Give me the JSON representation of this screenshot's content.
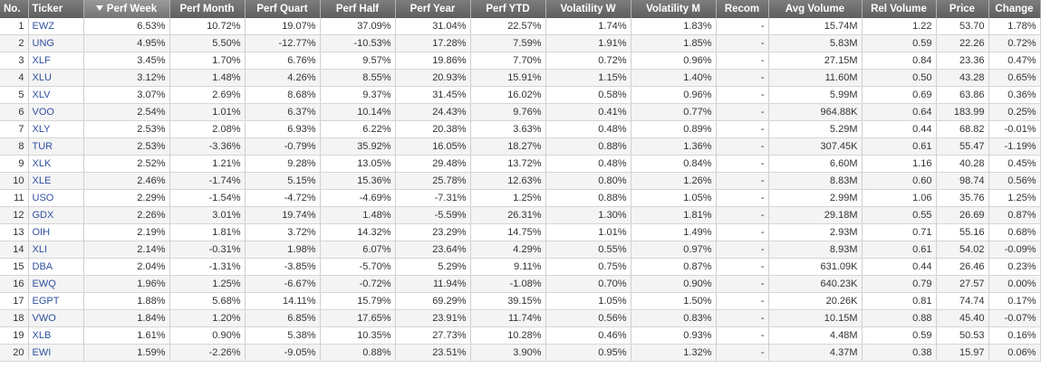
{
  "columns": [
    {
      "key": "no",
      "label": "No."
    },
    {
      "key": "ticker",
      "label": "Ticker"
    },
    {
      "key": "perf_week",
      "label": "Perf Week",
      "sorted": "desc"
    },
    {
      "key": "perf_month",
      "label": "Perf Month"
    },
    {
      "key": "perf_quart",
      "label": "Perf Quart"
    },
    {
      "key": "perf_half",
      "label": "Perf Half"
    },
    {
      "key": "perf_year",
      "label": "Perf Year"
    },
    {
      "key": "perf_ytd",
      "label": "Perf YTD"
    },
    {
      "key": "vol_w",
      "label": "Volatility W"
    },
    {
      "key": "vol_m",
      "label": "Volatility M"
    },
    {
      "key": "recom",
      "label": "Recom"
    },
    {
      "key": "avg_volume",
      "label": "Avg Volume"
    },
    {
      "key": "rel_volume",
      "label": "Rel Volume"
    },
    {
      "key": "price",
      "label": "Price"
    },
    {
      "key": "change",
      "label": "Change"
    }
  ],
  "colors": {
    "positive": "#117a11",
    "negative": "#c00000",
    "neutral": "#333333",
    "link": "#3050a0"
  },
  "rows": [
    {
      "no": "1",
      "ticker": "EWZ",
      "perf_week": "6.53%",
      "perf_month": "10.72%",
      "perf_quart": "19.07%",
      "perf_half": "37.09%",
      "perf_year": "31.04%",
      "perf_ytd": "22.57%",
      "vol_w": "1.74%",
      "vol_m": "1.83%",
      "recom": "-",
      "avg_volume": "15.74M",
      "rel_volume": "1.22",
      "price": "53.70",
      "change": "1.78%"
    },
    {
      "no": "2",
      "ticker": "UNG",
      "perf_week": "4.95%",
      "perf_month": "5.50%",
      "perf_quart": "-12.77%",
      "perf_half": "-10.53%",
      "perf_year": "17.28%",
      "perf_ytd": "7.59%",
      "vol_w": "1.91%",
      "vol_m": "1.85%",
      "recom": "-",
      "avg_volume": "5.83M",
      "rel_volume": "0.59",
      "price": "22.26",
      "change": "0.72%"
    },
    {
      "no": "3",
      "ticker": "XLF",
      "perf_week": "3.45%",
      "perf_month": "1.70%",
      "perf_quart": "6.76%",
      "perf_half": "9.57%",
      "perf_year": "19.86%",
      "perf_ytd": "7.70%",
      "vol_w": "0.72%",
      "vol_m": "0.96%",
      "recom": "-",
      "avg_volume": "27.15M",
      "rel_volume": "0.84",
      "price": "23.36",
      "change": "0.47%"
    },
    {
      "no": "4",
      "ticker": "XLU",
      "perf_week": "3.12%",
      "perf_month": "1.48%",
      "perf_quart": "4.26%",
      "perf_half": "8.55%",
      "perf_year": "20.93%",
      "perf_ytd": "15.91%",
      "vol_w": "1.15%",
      "vol_m": "1.40%",
      "recom": "-",
      "avg_volume": "11.60M",
      "rel_volume": "0.50",
      "price": "43.28",
      "change": "0.65%"
    },
    {
      "no": "5",
      "ticker": "XLV",
      "perf_week": "3.07%",
      "perf_month": "2.69%",
      "perf_quart": "8.68%",
      "perf_half": "9.37%",
      "perf_year": "31.45%",
      "perf_ytd": "16.02%",
      "vol_w": "0.58%",
      "vol_m": "0.96%",
      "recom": "-",
      "avg_volume": "5.99M",
      "rel_volume": "0.69",
      "price": "63.86",
      "change": "0.36%"
    },
    {
      "no": "6",
      "ticker": "VOO",
      "perf_week": "2.54%",
      "perf_month": "1.01%",
      "perf_quart": "6.37%",
      "perf_half": "10.14%",
      "perf_year": "24.43%",
      "perf_ytd": "9.76%",
      "vol_w": "0.41%",
      "vol_m": "0.77%",
      "recom": "-",
      "avg_volume": "964.88K",
      "rel_volume": "0.64",
      "price": "183.99",
      "change": "0.25%"
    },
    {
      "no": "7",
      "ticker": "XLY",
      "perf_week": "2.53%",
      "perf_month": "2.08%",
      "perf_quart": "6.93%",
      "perf_half": "6.22%",
      "perf_year": "20.38%",
      "perf_ytd": "3.63%",
      "vol_w": "0.48%",
      "vol_m": "0.89%",
      "recom": "-",
      "avg_volume": "5.29M",
      "rel_volume": "0.44",
      "price": "68.82",
      "change": "-0.01%"
    },
    {
      "no": "8",
      "ticker": "TUR",
      "perf_week": "2.53%",
      "perf_month": "-3.36%",
      "perf_quart": "-0.79%",
      "perf_half": "35.92%",
      "perf_year": "16.05%",
      "perf_ytd": "18.27%",
      "vol_w": "0.88%",
      "vol_m": "1.36%",
      "recom": "-",
      "avg_volume": "307.45K",
      "rel_volume": "0.61",
      "price": "55.47",
      "change": "-1.19%"
    },
    {
      "no": "9",
      "ticker": "XLK",
      "perf_week": "2.52%",
      "perf_month": "1.21%",
      "perf_quart": "9.28%",
      "perf_half": "13.05%",
      "perf_year": "29.48%",
      "perf_ytd": "13.72%",
      "vol_w": "0.48%",
      "vol_m": "0.84%",
      "recom": "-",
      "avg_volume": "6.60M",
      "rel_volume": "1.16",
      "price": "40.28",
      "change": "0.45%"
    },
    {
      "no": "10",
      "ticker": "XLE",
      "perf_week": "2.46%",
      "perf_month": "-1.74%",
      "perf_quart": "5.15%",
      "perf_half": "15.36%",
      "perf_year": "25.78%",
      "perf_ytd": "12.63%",
      "vol_w": "0.80%",
      "vol_m": "1.26%",
      "recom": "-",
      "avg_volume": "8.83M",
      "rel_volume": "0.60",
      "price": "98.74",
      "change": "0.56%"
    },
    {
      "no": "11",
      "ticker": "USO",
      "perf_week": "2.29%",
      "perf_month": "-1.54%",
      "perf_quart": "-4.72%",
      "perf_half": "-4.69%",
      "perf_year": "-7.31%",
      "perf_ytd": "1.25%",
      "vol_w": "0.88%",
      "vol_m": "1.05%",
      "recom": "-",
      "avg_volume": "2.99M",
      "rel_volume": "1.06",
      "price": "35.76",
      "change": "1.25%"
    },
    {
      "no": "12",
      "ticker": "GDX",
      "perf_week": "2.26%",
      "perf_month": "3.01%",
      "perf_quart": "19.74%",
      "perf_half": "1.48%",
      "perf_year": "-5.59%",
      "perf_ytd": "26.31%",
      "vol_w": "1.30%",
      "vol_m": "1.81%",
      "recom": "-",
      "avg_volume": "29.18M",
      "rel_volume": "0.55",
      "price": "26.69",
      "change": "0.87%"
    },
    {
      "no": "13",
      "ticker": "OIH",
      "perf_week": "2.19%",
      "perf_month": "1.81%",
      "perf_quart": "3.72%",
      "perf_half": "14.32%",
      "perf_year": "23.29%",
      "perf_ytd": "14.75%",
      "vol_w": "1.01%",
      "vol_m": "1.49%",
      "recom": "-",
      "avg_volume": "2.93M",
      "rel_volume": "0.71",
      "price": "55.16",
      "change": "0.68%"
    },
    {
      "no": "14",
      "ticker": "XLI",
      "perf_week": "2.14%",
      "perf_month": "-0.31%",
      "perf_quart": "1.98%",
      "perf_half": "6.07%",
      "perf_year": "23.64%",
      "perf_ytd": "4.29%",
      "vol_w": "0.55%",
      "vol_m": "0.97%",
      "recom": "-",
      "avg_volume": "8.93M",
      "rel_volume": "0.61",
      "price": "54.02",
      "change": "-0.09%"
    },
    {
      "no": "15",
      "ticker": "DBA",
      "perf_week": "2.04%",
      "perf_month": "-1.31%",
      "perf_quart": "-3.85%",
      "perf_half": "-5.70%",
      "perf_year": "5.29%",
      "perf_ytd": "9.11%",
      "vol_w": "0.75%",
      "vol_m": "0.87%",
      "recom": "-",
      "avg_volume": "631.09K",
      "rel_volume": "0.44",
      "price": "26.46",
      "change": "0.23%"
    },
    {
      "no": "16",
      "ticker": "EWQ",
      "perf_week": "1.96%",
      "perf_month": "1.25%",
      "perf_quart": "-6.67%",
      "perf_half": "-0.72%",
      "perf_year": "11.94%",
      "perf_ytd": "-1.08%",
      "vol_w": "0.70%",
      "vol_m": "0.90%",
      "recom": "-",
      "avg_volume": "640.23K",
      "rel_volume": "0.79",
      "price": "27.57",
      "change": "0.00%"
    },
    {
      "no": "17",
      "ticker": "EGPT",
      "perf_week": "1.88%",
      "perf_month": "5.68%",
      "perf_quart": "14.11%",
      "perf_half": "15.79%",
      "perf_year": "69.29%",
      "perf_ytd": "39.15%",
      "vol_w": "1.05%",
      "vol_m": "1.50%",
      "recom": "-",
      "avg_volume": "20.26K",
      "rel_volume": "0.81",
      "price": "74.74",
      "change": "0.17%"
    },
    {
      "no": "18",
      "ticker": "VWO",
      "perf_week": "1.84%",
      "perf_month": "1.20%",
      "perf_quart": "6.85%",
      "perf_half": "17.65%",
      "perf_year": "23.91%",
      "perf_ytd": "11.74%",
      "vol_w": "0.56%",
      "vol_m": "0.83%",
      "recom": "-",
      "avg_volume": "10.15M",
      "rel_volume": "0.88",
      "price": "45.40",
      "change": "-0.07%"
    },
    {
      "no": "19",
      "ticker": "XLB",
      "perf_week": "1.61%",
      "perf_month": "0.90%",
      "perf_quart": "5.38%",
      "perf_half": "10.35%",
      "perf_year": "27.73%",
      "perf_ytd": "10.28%",
      "vol_w": "0.46%",
      "vol_m": "0.93%",
      "recom": "-",
      "avg_volume": "4.48M",
      "rel_volume": "0.59",
      "price": "50.53",
      "change": "0.16%"
    },
    {
      "no": "20",
      "ticker": "EWI",
      "perf_week": "1.59%",
      "perf_month": "-2.26%",
      "perf_quart": "-9.05%",
      "perf_half": "0.88%",
      "perf_year": "23.51%",
      "perf_ytd": "3.90%",
      "vol_w": "0.95%",
      "vol_m": "1.32%",
      "recom": "-",
      "avg_volume": "4.37M",
      "rel_volume": "0.38",
      "price": "15.97",
      "change": "0.06%"
    }
  ]
}
